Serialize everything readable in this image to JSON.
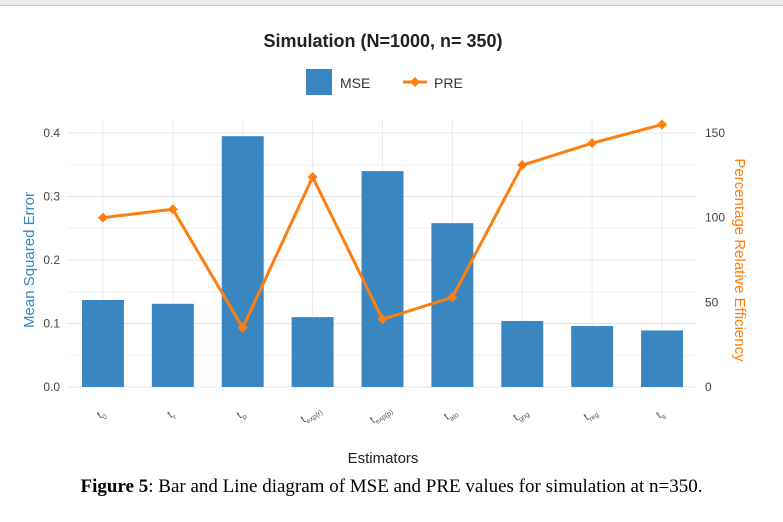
{
  "chart_data": {
    "type": "bar",
    "title": "Simulation (N=1000, n= 350)",
    "xlabel": "Estimators",
    "ylabel": "Mean Squared Error",
    "y2label": "Percentage Relative Efficiency",
    "ylim": [
      0,
      0.4
    ],
    "y2lim": [
      0,
      150
    ],
    "yticks": [
      "0.0",
      "0.1",
      "0.2",
      "0.3",
      "0.4"
    ],
    "y2ticks": [
      "0",
      "50",
      "100",
      "150"
    ],
    "legend_position": "top",
    "grid": true,
    "categories": [
      {
        "base": "t",
        "sub": "0"
      },
      {
        "base": "t",
        "sub": "r"
      },
      {
        "base": "t",
        "sub": "p"
      },
      {
        "base": "t",
        "sub": "exp(r)"
      },
      {
        "base": "t",
        "sub": "exp(p)"
      },
      {
        "base": "t",
        "sub": "alo"
      },
      {
        "base": "t",
        "sub": "gng"
      },
      {
        "base": "t",
        "sub": "reg"
      },
      {
        "base": "t",
        "sub": "s"
      }
    ],
    "series": [
      {
        "name": "MSE",
        "kind": "bar",
        "axis": "left",
        "color": "#3a86c0",
        "values": [
          0.137,
          0.131,
          0.395,
          0.11,
          0.34,
          0.258,
          0.104,
          0.096,
          0.089
        ]
      },
      {
        "name": "PRE",
        "kind": "line",
        "axis": "right",
        "color": "#ff7f0e",
        "values": [
          100,
          105,
          35,
          124,
          40,
          53,
          131,
          144,
          155
        ]
      }
    ]
  },
  "caption": {
    "label": "Figure 5",
    "text": ": Bar and Line diagram of MSE and PRE values for simulation at n=350."
  }
}
